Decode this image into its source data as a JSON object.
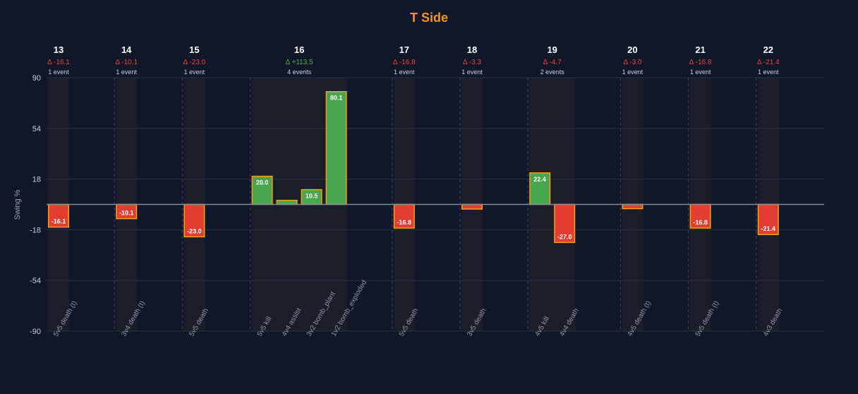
{
  "chart_data": {
    "type": "bar",
    "title": "T Side",
    "ylabel": "Swing %",
    "ylim": [
      -90,
      90
    ],
    "yticks": [
      90,
      54,
      18,
      -18,
      -54,
      -90
    ],
    "grid": true,
    "colors": {
      "title": "#f7931e",
      "positive_fill": "#4aa64e",
      "negative_fill": "#e23d30",
      "bar_border": "#f5a016",
      "delta_positive": "#4caf50",
      "delta_negative": "#f44336",
      "background": "#0f1729",
      "band": "#1b1e29"
    },
    "rounds": [
      {
        "round": "13",
        "delta": "Δ -16.1",
        "sign": "neg",
        "events_label": "1 event",
        "events": [
          {
            "label": "5v5 death (t)",
            "value": -16.1,
            "value_label": "-16.1"
          }
        ]
      },
      {
        "round": "14",
        "delta": "Δ -10.1",
        "sign": "neg",
        "events_label": "1 event",
        "events": [
          {
            "label": "3v4 death (t)",
            "value": -10.1,
            "value_label": "-10.1"
          }
        ]
      },
      {
        "round": "15",
        "delta": "Δ -23.0",
        "sign": "neg",
        "events_label": "1 event",
        "events": [
          {
            "label": "5v5 death",
            "value": -23.0,
            "value_label": "-23.0"
          }
        ]
      },
      {
        "round": "16",
        "delta": "Δ +113.5",
        "sign": "pos",
        "events_label": "4 events",
        "events": [
          {
            "label": "5v5 kill",
            "value": 20.0,
            "value_label": "20.0"
          },
          {
            "label": "4v4 assist",
            "value": 2.9,
            "value_label": ""
          },
          {
            "label": "3v2 bomb_plant",
            "value": 10.5,
            "value_label": "10.5"
          },
          {
            "label": "1v2 bomb_exploded",
            "value": 80.1,
            "value_label": "80.1"
          }
        ]
      },
      {
        "round": "17",
        "delta": "Δ -16.8",
        "sign": "neg",
        "events_label": "1 event",
        "events": [
          {
            "label": "5v5 death",
            "value": -16.8,
            "value_label": "-16.8"
          }
        ]
      },
      {
        "round": "18",
        "delta": "Δ -3.3",
        "sign": "neg",
        "events_label": "1 event",
        "events": [
          {
            "label": "3v5 death",
            "value": -3.3,
            "value_label": ""
          }
        ]
      },
      {
        "round": "19",
        "delta": "Δ -4.7",
        "sign": "neg",
        "events_label": "2 events",
        "events": [
          {
            "label": "4v5 kill",
            "value": 22.4,
            "value_label": "22.4"
          },
          {
            "label": "4v4 death",
            "value": -27.0,
            "value_label": "-27.0"
          }
        ]
      },
      {
        "round": "20",
        "delta": "Δ -3.0",
        "sign": "neg",
        "events_label": "1 event",
        "events": [
          {
            "label": "4v5 death (t)",
            "value": -3.0,
            "value_label": ""
          }
        ]
      },
      {
        "round": "21",
        "delta": "Δ -16.8",
        "sign": "neg",
        "events_label": "1 event",
        "events": [
          {
            "label": "5v5 death (t)",
            "value": -16.8,
            "value_label": "-16.8"
          }
        ]
      },
      {
        "round": "22",
        "delta": "Δ -21.4",
        "sign": "neg",
        "events_label": "1 event",
        "events": [
          {
            "label": "4v3 death",
            "value": -21.4,
            "value_label": "-21.4"
          }
        ]
      }
    ]
  }
}
